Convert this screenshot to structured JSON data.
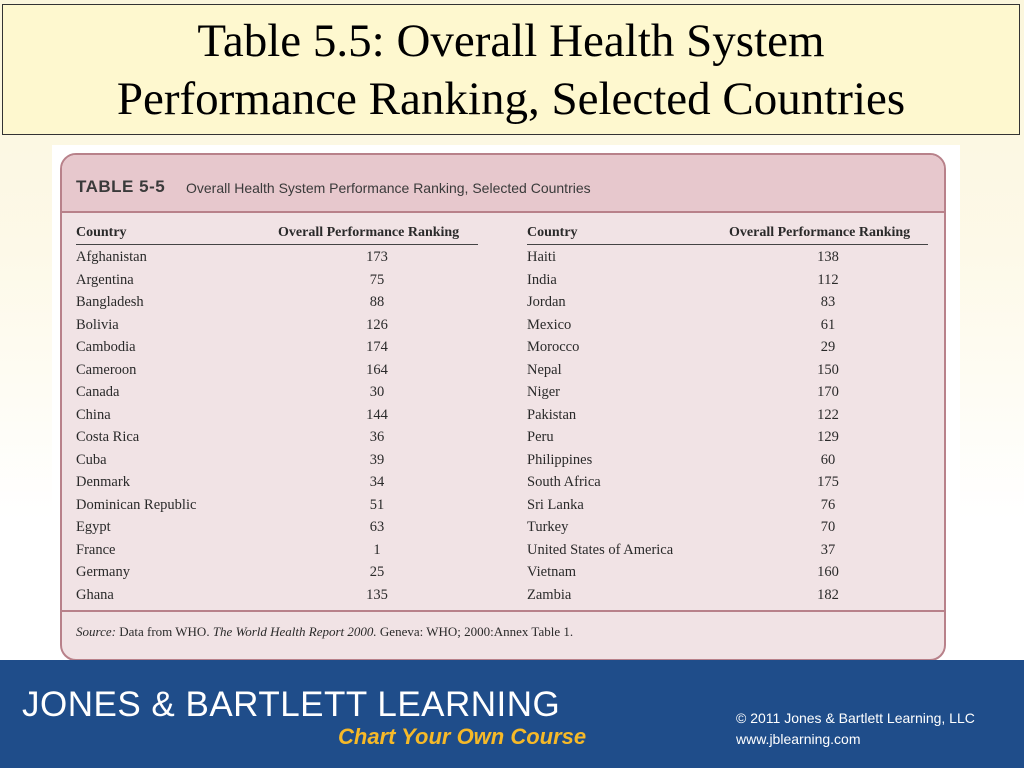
{
  "slide": {
    "title_line1": "Table 5.5: Overall Health System",
    "title_line2": "Performance Ranking, Selected Countries"
  },
  "table": {
    "number": "TABLE 5-5",
    "caption": "Overall Health System Performance Ranking, Selected Countries",
    "col_country": "Country",
    "col_rank": "Overall Performance Ranking",
    "left_rows": [
      {
        "country": "Afghanistan",
        "rank": "173"
      },
      {
        "country": "Argentina",
        "rank": "75"
      },
      {
        "country": "Bangladesh",
        "rank": "88"
      },
      {
        "country": "Bolivia",
        "rank": "126"
      },
      {
        "country": "Cambodia",
        "rank": "174"
      },
      {
        "country": "Cameroon",
        "rank": "164"
      },
      {
        "country": "Canada",
        "rank": "30"
      },
      {
        "country": "China",
        "rank": "144"
      },
      {
        "country": "Costa Rica",
        "rank": "36"
      },
      {
        "country": "Cuba",
        "rank": "39"
      },
      {
        "country": "Denmark",
        "rank": "34"
      },
      {
        "country": "Dominican Republic",
        "rank": "51"
      },
      {
        "country": "Egypt",
        "rank": "63"
      },
      {
        "country": "France",
        "rank": "1"
      },
      {
        "country": "Germany",
        "rank": "25"
      },
      {
        "country": "Ghana",
        "rank": "135"
      }
    ],
    "right_rows": [
      {
        "country": "Haiti",
        "rank": "138"
      },
      {
        "country": "India",
        "rank": "112"
      },
      {
        "country": "Jordan",
        "rank": "83"
      },
      {
        "country": "Mexico",
        "rank": "61"
      },
      {
        "country": "Morocco",
        "rank": "29"
      },
      {
        "country": "Nepal",
        "rank": "150"
      },
      {
        "country": "Niger",
        "rank": "170"
      },
      {
        "country": "Pakistan",
        "rank": "122"
      },
      {
        "country": "Peru",
        "rank": "129"
      },
      {
        "country": "Philippines",
        "rank": "60"
      },
      {
        "country": "South Africa",
        "rank": "175"
      },
      {
        "country": "Sri Lanka",
        "rank": "76"
      },
      {
        "country": "Turkey",
        "rank": "70"
      },
      {
        "country": "United States of America",
        "rank": "37"
      },
      {
        "country": "Vietnam",
        "rank": "160"
      },
      {
        "country": "Zambia",
        "rank": "182"
      }
    ],
    "source_label": "Source:",
    "source_text_1": " Data from WHO. ",
    "source_publication": "The World Health Report 2000.",
    "source_text_2": " Geneva: WHO; 2000:Annex Table 1."
  },
  "banner": {
    "brand": "JONES & BARTLETT LEARNING",
    "tagline": "Chart Your Own Course",
    "copyright": "© 2011 Jones & Bartlett Learning, LLC",
    "website": "www.jblearning.com"
  },
  "colors": {
    "title_bg": "#fef8cf",
    "table_bg": "#f1e3e5",
    "table_header_bg": "#e7c8cd",
    "table_border": "#b8818a",
    "banner_bg": "#1f4d8a",
    "tagline": "#f6b928"
  }
}
